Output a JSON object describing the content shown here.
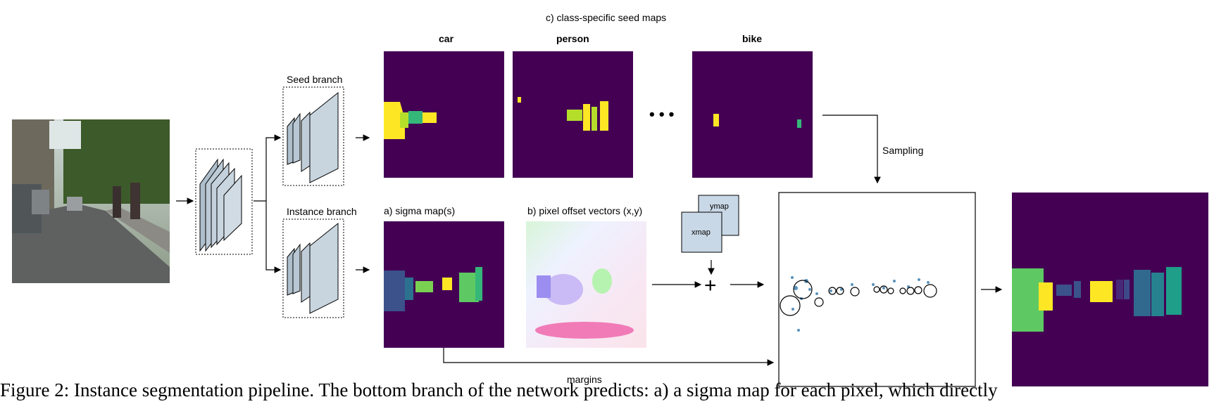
{
  "labels": {
    "seed_maps_title": "c) class-specific seed maps",
    "class_car": "car",
    "class_person": "person",
    "class_bike": "bike",
    "ellipsis": "• • •",
    "seed_branch": "Seed branch",
    "instance_branch": "Instance branch",
    "sigma_map": "a)  sigma map(s)",
    "offset_vectors": "b) pixel offset vectors (x,y)",
    "ymap": "ymap",
    "xmap": "xmap",
    "plus": "+",
    "sampling": "Sampling",
    "margins": "margins"
  },
  "caption": "Figure 2: Instance segmentation pipeline. The bottom branch of the network predicts: a) a sigma map for each pixel, which directly"
}
